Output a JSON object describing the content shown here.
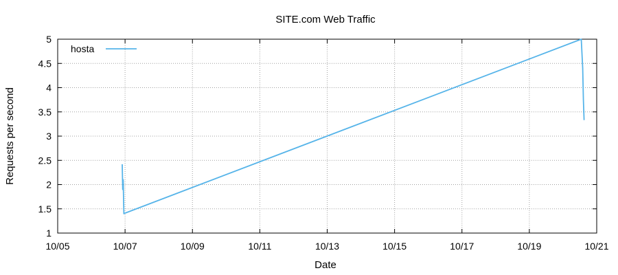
{
  "chart_data": {
    "type": "line",
    "title": "SITE.com Web Traffic",
    "xlabel": "Date",
    "ylabel": "Requests per second",
    "x_tick_labels": [
      "10/05",
      "10/07",
      "10/09",
      "10/11",
      "10/13",
      "10/15",
      "10/17",
      "10/19",
      "10/21"
    ],
    "x_ticks": [
      "2010-10-05",
      "2010-10-07",
      "2010-10-09",
      "2010-10-11",
      "2010-10-13",
      "2010-10-15",
      "2010-10-17",
      "2010-10-19",
      "2010-10-21"
    ],
    "xlim": [
      "2010-10-05",
      "2010-10-21"
    ],
    "y_tick_labels": [
      "1",
      "1.5",
      "2",
      "2.5",
      "3",
      "3.5",
      "4",
      "4.5",
      "5"
    ],
    "ylim": [
      1,
      5
    ],
    "grid": true,
    "legend_position": "top-left",
    "series": [
      {
        "name": "hosta",
        "color": "#56b4e9",
        "points": [
          {
            "x": "2010-10-06T22:00",
            "y": 2.42
          },
          {
            "x": "2010-10-06T22:20",
            "y": 1.9
          },
          {
            "x": "2010-10-06T22:40",
            "y": 2.1
          },
          {
            "x": "2010-10-06T23:10",
            "y": 1.4
          },
          {
            "x": "2010-10-06T23:50",
            "y": 1.41
          },
          {
            "x": "2010-10-20T13:00",
            "y": 5.0
          },
          {
            "x": "2010-10-20T14:00",
            "y": 4.4
          },
          {
            "x": "2010-10-20T14:30",
            "y": 3.75
          },
          {
            "x": "2010-10-20T15:00",
            "y": 3.33
          }
        ]
      }
    ]
  }
}
